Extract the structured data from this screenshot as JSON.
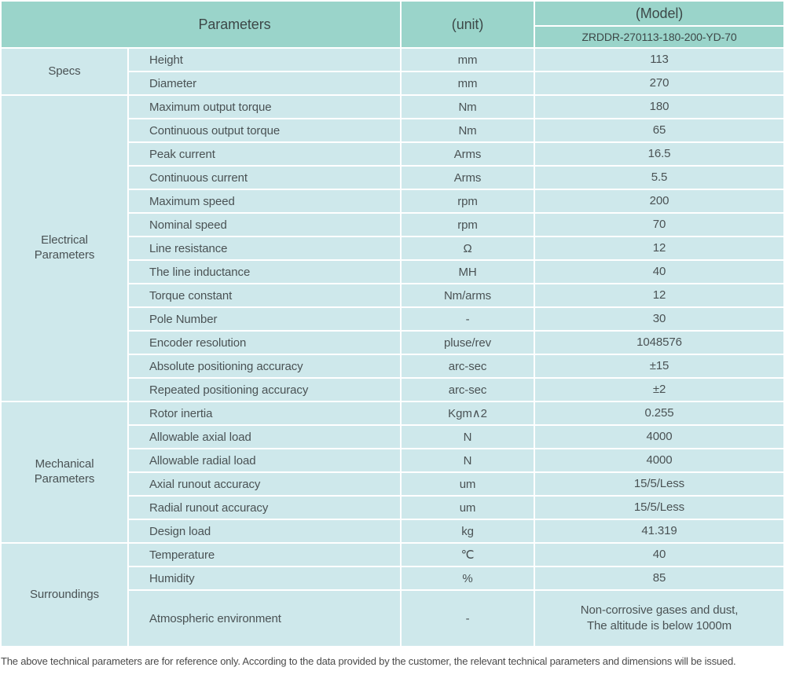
{
  "table": {
    "header": {
      "parameters_label": "Parameters",
      "unit_label": "(unit)",
      "model_label": "(Model)",
      "model_value": "ZRDDR-270113-180-200-YD-70"
    },
    "groups": [
      {
        "name": "Specs",
        "rows": [
          [
            "Height",
            "mm",
            "113"
          ],
          [
            "Diameter",
            "mm",
            "270"
          ]
        ]
      },
      {
        "name": "Electrical\nParameters",
        "rows": [
          [
            "Maximum output torque",
            "Nm",
            "180"
          ],
          [
            "Continuous output torque",
            "Nm",
            "65"
          ],
          [
            "Peak current",
            "Arms",
            "16.5"
          ],
          [
            "Continuous current",
            "Arms",
            "5.5"
          ],
          [
            "Maximum speed",
            "rpm",
            "200"
          ],
          [
            "Nominal speed",
            "rpm",
            "70"
          ],
          [
            "Line resistance",
            "Ω",
            "12"
          ],
          [
            "The line inductance",
            "MH",
            "40"
          ],
          [
            "Torque constant",
            "Nm/arms",
            "12"
          ],
          [
            "Pole Number",
            "-",
            "30"
          ],
          [
            "Encoder resolution",
            "pluse/rev",
            "1048576"
          ],
          [
            "Absolute positioning accuracy",
            "arc-sec",
            "±15"
          ],
          [
            "Repeated positioning accuracy",
            "arc-sec",
            "±2"
          ]
        ]
      },
      {
        "name": "Mechanical\nParameters",
        "rows": [
          [
            "Rotor inertia",
            "Kgm∧2",
            "0.255"
          ],
          [
            "Allowable axial load",
            "N",
            "4000"
          ],
          [
            "Allowable radial load",
            "N",
            "4000"
          ],
          [
            "Axial runout accuracy",
            "um",
            "15/5/Less"
          ],
          [
            "Radial runout accuracy",
            "um",
            "15/5/Less"
          ],
          [
            "Design load",
            "kg",
            "41.319"
          ]
        ]
      },
      {
        "name": "Surroundings",
        "rows": [
          [
            "Temperature",
            "℃",
            "40"
          ],
          [
            "Humidity",
            "%",
            "85"
          ],
          [
            "Atmospheric environment",
            "-",
            "Non-corrosive gases and dust,\nThe altitude is below 1000m"
          ]
        ]
      }
    ],
    "footnote": "The above technical parameters are for reference only. According to the data provided by the customer, the relevant technical parameters and dimensions will be issued."
  },
  "colors": {
    "header_bg": "#9ad4ca",
    "cell_bg": "#cee8eb",
    "grid": "#ffffff",
    "text": "#4a5254"
  }
}
